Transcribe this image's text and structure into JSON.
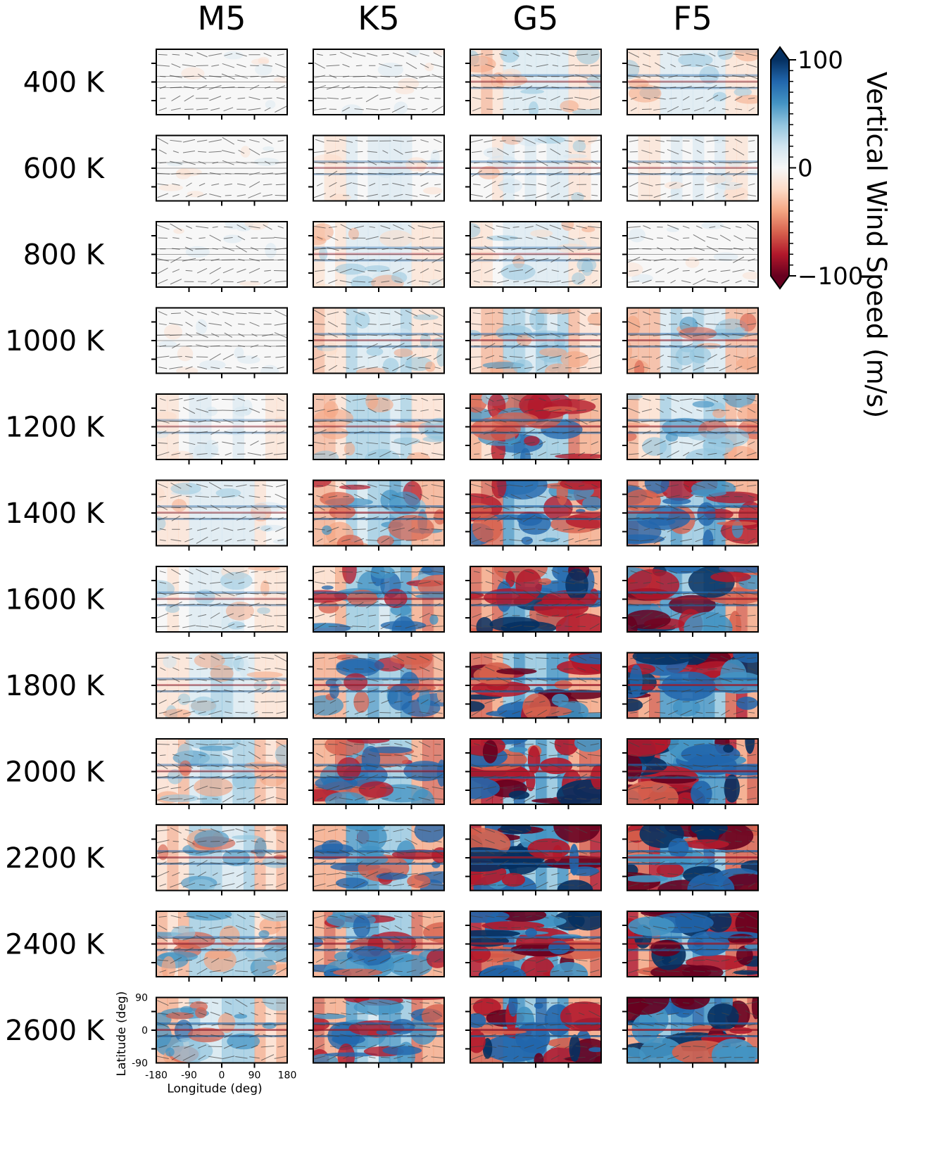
{
  "chart_data": {
    "type": "heatmap",
    "columns": [
      "M5",
      "K5",
      "G5",
      "F5"
    ],
    "rows": [
      "400 K",
      "600 K",
      "800 K",
      "1000 K",
      "1200 K",
      "1400 K",
      "1600 K",
      "1800 K",
      "2000 K",
      "2200 K",
      "2400 K",
      "2600 K"
    ],
    "xlabel": "Longitude (deg)",
    "ylabel": "Latitude (deg)",
    "xlim": [
      -180,
      180
    ],
    "ylim": [
      -90,
      90
    ],
    "xticks": [
      "-180",
      "-90",
      "0",
      "90",
      "180"
    ],
    "yticks": [
      "90",
      "0",
      "-90"
    ],
    "colorbar": {
      "label": "Vertical Wind Speed (m/s)",
      "range": [
        -100,
        100
      ],
      "ticks": [
        "100",
        "0",
        "−100"
      ],
      "colormap": "RdBu_r",
      "extend": "both",
      "colors": [
        "#67001f",
        "#b2182b",
        "#d6604d",
        "#f4a582",
        "#fddbc7",
        "#f7f7f7",
        "#d1e5f0",
        "#92c5de",
        "#4393c3",
        "#2166ac",
        "#053061"
      ]
    },
    "intensity": [
      [
        0.05,
        0.1,
        0.35,
        0.3
      ],
      [
        0.08,
        0.2,
        0.25,
        0.2
      ],
      [
        0.12,
        0.3,
        0.3,
        0.1
      ],
      [
        0.12,
        0.35,
        0.45,
        0.45
      ],
      [
        0.2,
        0.4,
        0.75,
        0.55
      ],
      [
        0.25,
        0.65,
        0.8,
        0.8
      ],
      [
        0.3,
        0.75,
        0.9,
        0.9
      ],
      [
        0.35,
        0.7,
        0.95,
        0.95
      ],
      [
        0.45,
        0.75,
        1.0,
        1.0
      ],
      [
        0.5,
        0.8,
        1.0,
        1.0
      ],
      [
        0.6,
        0.8,
        1.0,
        1.0
      ],
      [
        0.65,
        0.8,
        1.0,
        1.0
      ]
    ]
  }
}
